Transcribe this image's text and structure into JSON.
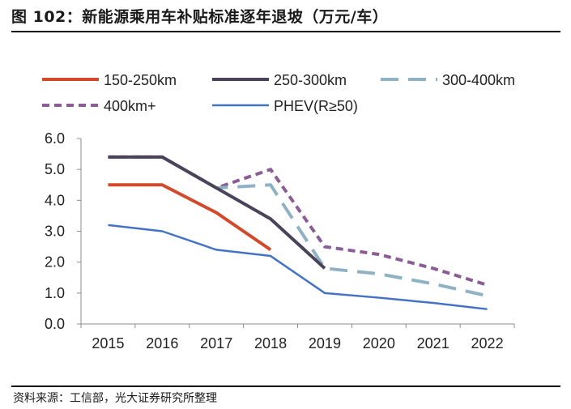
{
  "title": "图 102：新能源乘用车补贴标准逐年退坡（万元/车）",
  "source": "资料来源：工信部，光大证券研究所整理",
  "chart_data": {
    "type": "line",
    "title": "新能源乘用车补贴标准逐年退坡（万元/车）",
    "xlabel": "",
    "ylabel": "",
    "categories": [
      "2015",
      "2016",
      "2017",
      "2018",
      "2019",
      "2020",
      "2021",
      "2022"
    ],
    "ylim": [
      0,
      6
    ],
    "yticks": [
      "0.0",
      "1.0",
      "2.0",
      "3.0",
      "4.0",
      "5.0",
      "6.0"
    ],
    "grid": false,
    "legend_position": "top",
    "series": [
      {
        "name": "150-250km",
        "color": "#d24a2b",
        "dash": "solid",
        "width": 4,
        "values": [
          4.5,
          4.5,
          3.6,
          2.4,
          null,
          null,
          null,
          null
        ]
      },
      {
        "name": "250-300km",
        "color": "#4b4359",
        "dash": "solid",
        "width": 4,
        "values": [
          5.4,
          5.4,
          4.4,
          3.4,
          1.8,
          null,
          null,
          null
        ]
      },
      {
        "name": "300-400km",
        "color": "#8fb1c4",
        "dash": "long",
        "width": 4,
        "values": [
          5.4,
          5.4,
          4.4,
          4.5,
          1.8,
          1.62,
          1.3,
          0.91
        ]
      },
      {
        "name": "400km+",
        "color": "#8a5d95",
        "dash": "short",
        "width": 4,
        "values": [
          5.4,
          5.4,
          4.4,
          5.0,
          2.5,
          2.25,
          1.8,
          1.26
        ]
      },
      {
        "name": "PHEV(R≥50)",
        "color": "#4472c4",
        "dash": "solid",
        "width": 2.5,
        "values": [
          3.2,
          3.0,
          2.4,
          2.2,
          1.0,
          0.85,
          0.68,
          0.48
        ]
      }
    ]
  }
}
